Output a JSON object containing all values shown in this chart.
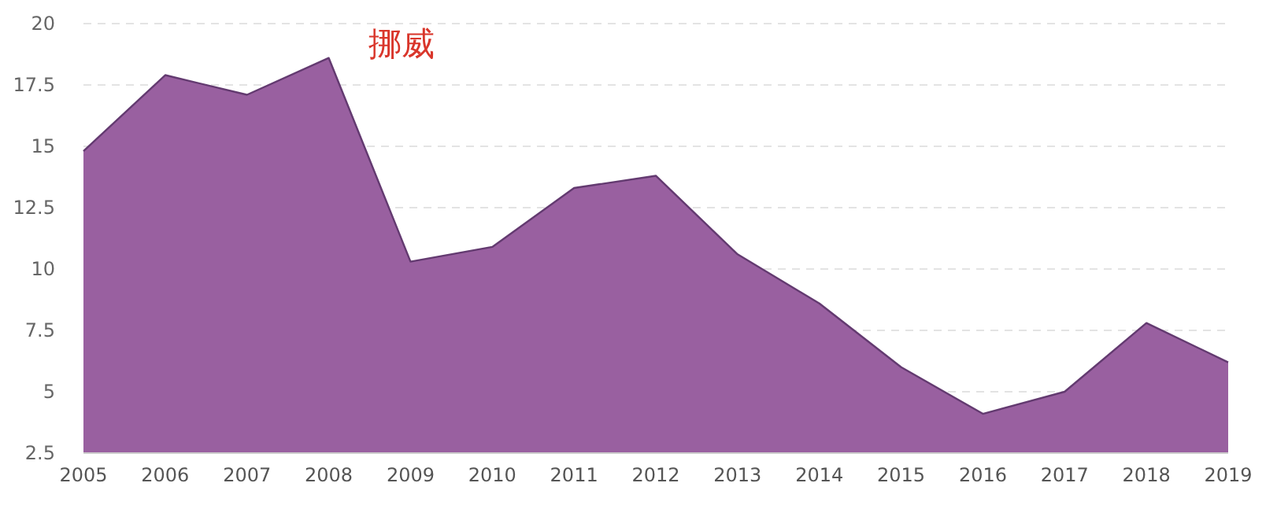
{
  "chart_data": {
    "type": "area",
    "title": "挪威",
    "categories": [
      "2005",
      "2006",
      "2007",
      "2008",
      "2009",
      "2010",
      "2011",
      "2012",
      "2013",
      "2014",
      "2015",
      "2016",
      "2017",
      "2018",
      "2019"
    ],
    "series": [
      {
        "color": "#9960a0",
        "values": [
          14.8,
          17.9,
          17.1,
          18.6,
          10.3,
          10.9,
          13.3,
          13.8,
          10.6,
          8.6,
          6.0,
          4.1,
          5.0,
          7.8,
          6.2
        ]
      }
    ],
    "ylim": [
      2.5,
      20
    ],
    "yticks": [
      2.5,
      5,
      7.5,
      10,
      12.5,
      15,
      17.5,
      20
    ],
    "grid": "y"
  }
}
